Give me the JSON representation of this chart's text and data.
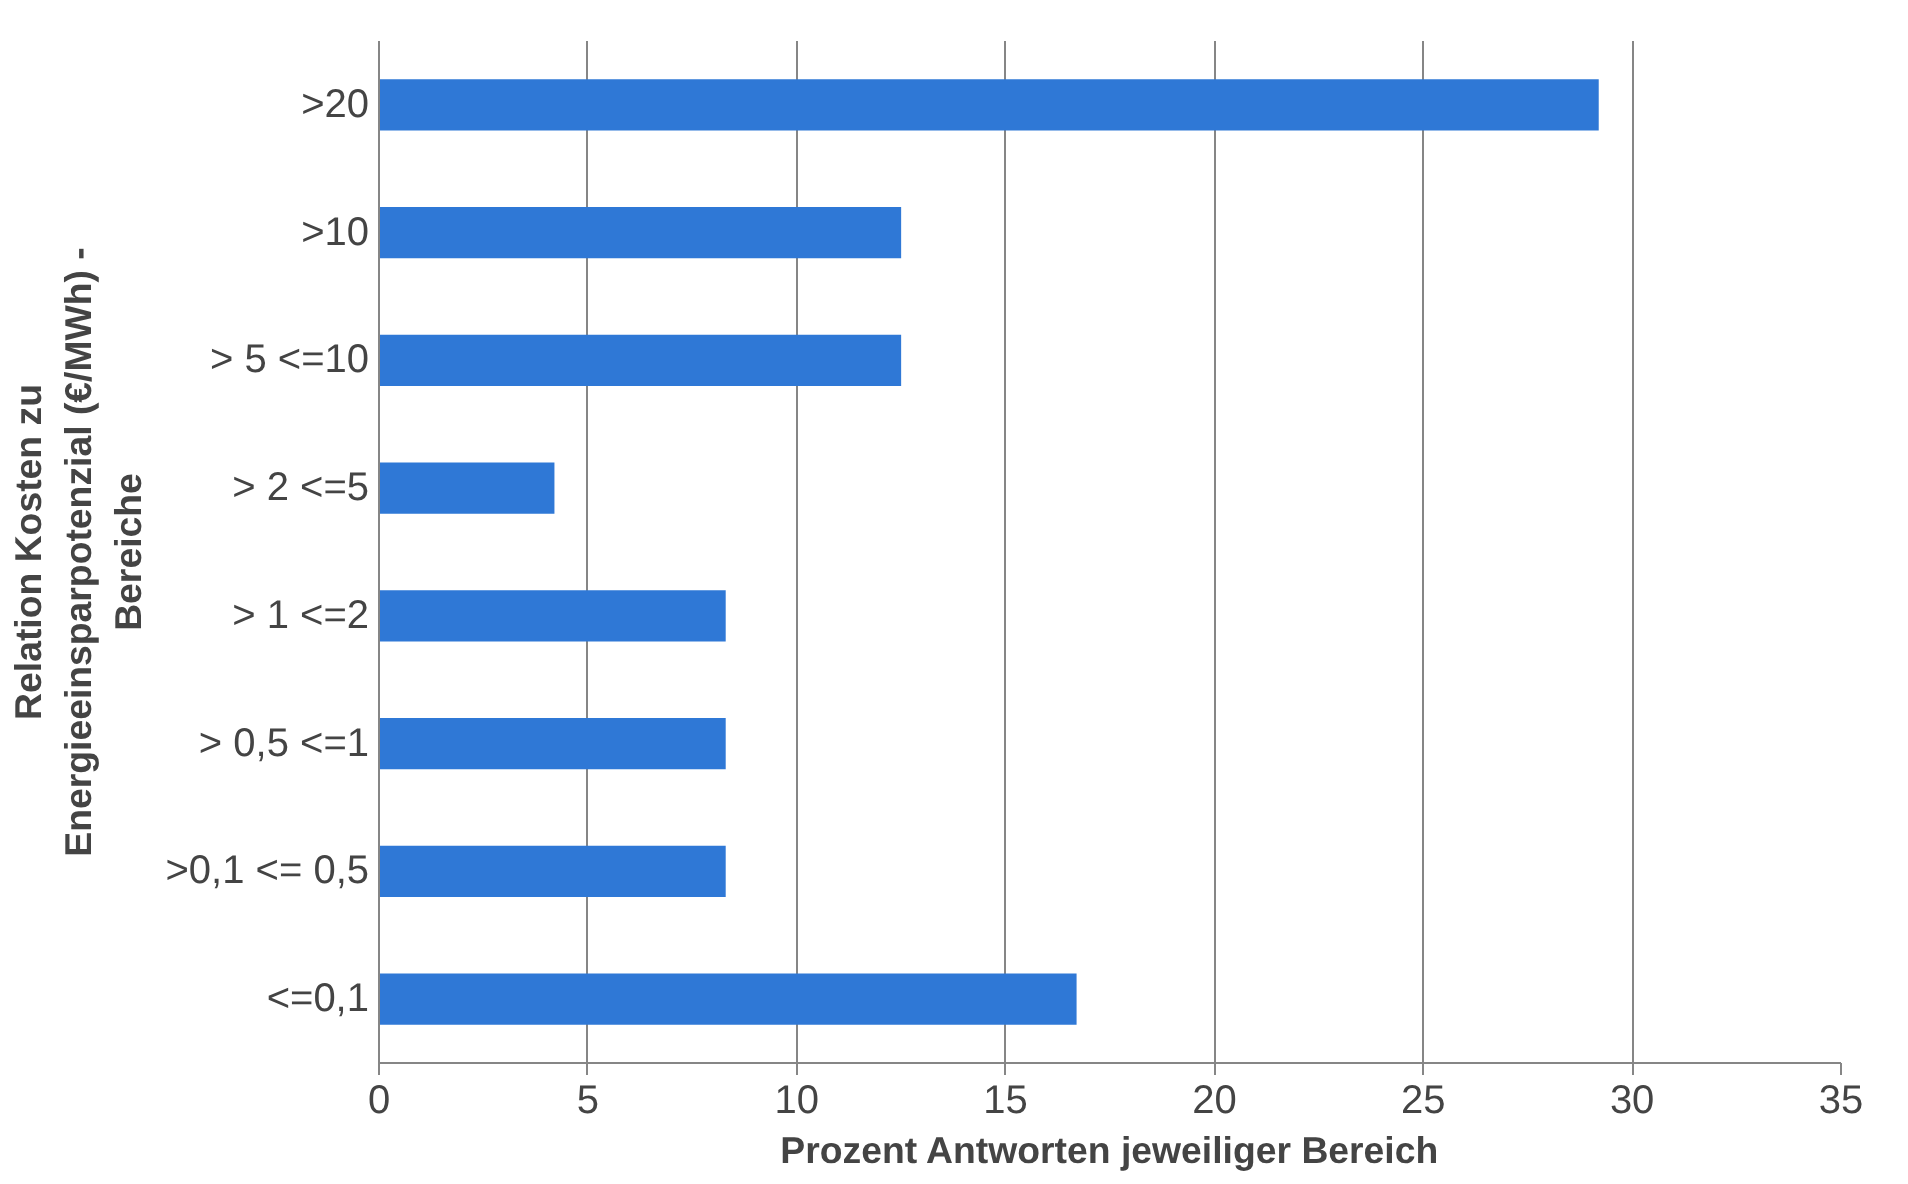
{
  "chart_data": {
    "type": "bar",
    "orientation": "horizontal",
    "ylabel": "Relation Kosten zu\nEnergieeinsparpotenzial (€/MWh) -\nBereiche",
    "xlabel": "Prozent Antworten jeweiliger Bereich",
    "categories": [
      ">20",
      ">10",
      "> 5 <=10",
      "> 2 <=5",
      "> 1 <=2",
      "> 0,5 <=1",
      ">0,1 <= 0,5",
      "<=0,1"
    ],
    "values": [
      29.2,
      12.5,
      12.5,
      4.2,
      8.3,
      8.3,
      8.3,
      16.7
    ],
    "color": "#2f78d6",
    "xlim": [
      0,
      35
    ],
    "xticks": [
      0,
      5,
      10,
      15,
      20,
      25,
      30,
      35
    ],
    "grid": "x"
  }
}
